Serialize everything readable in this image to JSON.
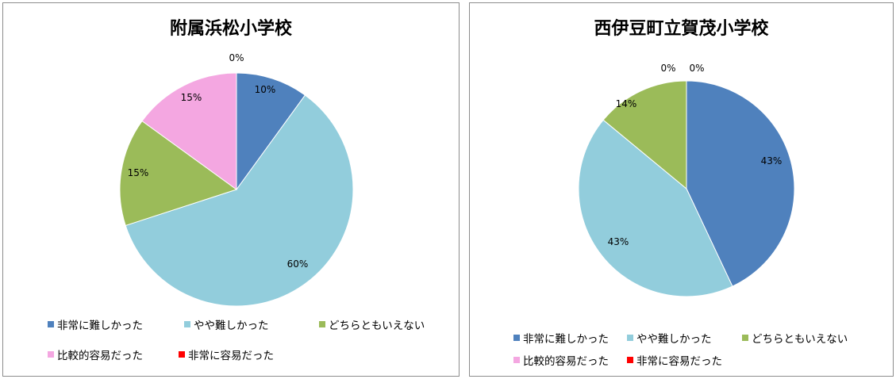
{
  "chart_data": [
    {
      "type": "pie",
      "title": "附属浜松小学校",
      "categories": [
        "非常に難しかった",
        "やや難しかった",
        "どちらともいえない",
        "比較的容易だった",
        "非常に容易だった"
      ],
      "values": [
        10,
        60,
        15,
        15,
        0
      ],
      "labels": [
        "10%",
        "60%",
        "15%",
        "15%",
        "0%"
      ],
      "colors": [
        "#4f81bd",
        "#92cddc",
        "#9bbb59",
        "#f4a7e1",
        "#ff0000"
      ],
      "legend_position": "bottom"
    },
    {
      "type": "pie",
      "title": "西伊豆町立賀茂小学校",
      "categories": [
        "非常に難しかった",
        "やや難しかった",
        "どちらともいえない",
        "比較的容易だった",
        "非常に容易だった"
      ],
      "values": [
        43,
        43,
        14,
        0,
        0
      ],
      "labels": [
        "43%",
        "43%",
        "14%",
        "0%",
        "0%"
      ],
      "colors": [
        "#4f81bd",
        "#92cddc",
        "#9bbb59",
        "#f4a7e1",
        "#ff0000"
      ],
      "legend_position": "bottom"
    }
  ]
}
